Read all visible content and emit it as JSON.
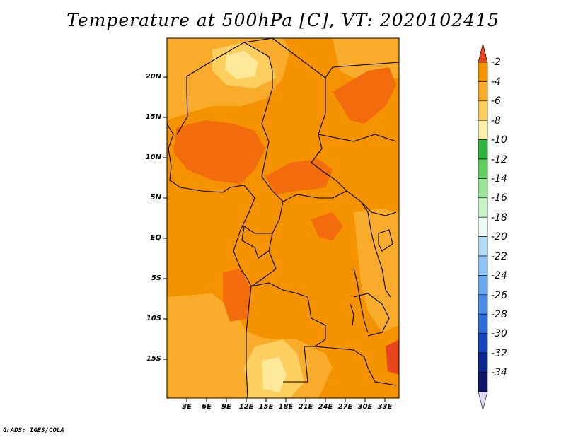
{
  "title": "Temperature at 500hPa [C], VT: 2020102415",
  "credit": "GrADS: IGES/COLA",
  "lat_labels": [
    "20N",
    "15N",
    "10N",
    "5N",
    "EQ",
    "5S",
    "10S",
    "15S"
  ],
  "lon_labels": [
    "3E",
    "6E",
    "9E",
    "12E",
    "15E",
    "18E",
    "21E",
    "24E",
    "27E",
    "30E",
    "33E"
  ],
  "colorbar": {
    "labels": [
      "-2",
      "-4",
      "-6",
      "-8",
      "-10",
      "-12",
      "-14",
      "-16",
      "-18",
      "-20",
      "-22",
      "-24",
      "-26",
      "-28",
      "-30",
      "-32",
      "-34"
    ],
    "colors": [
      "#e8461e",
      "#f26b0c",
      "#f59200",
      "#f9ac2c",
      "#fdcf5e",
      "#fef0a6",
      "#2fb33f",
      "#5fcf5f",
      "#9ae59a",
      "#c9f3c9",
      "#eafaf6",
      "#b4dcf7",
      "#8ec4f4",
      "#6aa8ef",
      "#4a8be6",
      "#2b6cd6",
      "#1448ba",
      "#0a2790",
      "#0b1466"
    ],
    "upper_arrow_color": "#e8461e",
    "lower_arrow_color": "#dcd8f4"
  },
  "field_colors": {
    "base": "#f59200",
    "warm": "#f26b0c",
    "cool": "#f9ac2c",
    "cooler": "#fdcf5e",
    "coolest": "#fee99a"
  }
}
